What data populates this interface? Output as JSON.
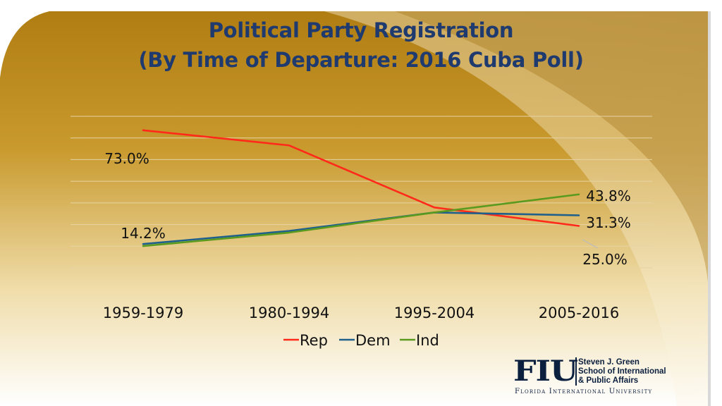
{
  "slide": {
    "title_line_1": "Political Party Registration",
    "title_line_2": "(By Time of Departure: 2016 Cuba Poll)"
  },
  "logo": {
    "mark": "FIU",
    "line_1": "Steven J. Green",
    "line_2": "School of International",
    "line_3": "& Public Affairs",
    "university": "Florida International University"
  },
  "colors": {
    "title": "#1f3a6e",
    "gold_background": "#b8860b",
    "Rep": "#ff2a1a",
    "Dem": "#1f5f8b",
    "Ind": "#5a9a1f"
  },
  "chart_data": {
    "type": "line",
    "title": "Political Party Registration (By Time of Departure: 2016 Cuba Poll)",
    "categories": [
      "1959-1979",
      "1980-1994",
      "1995-2004",
      "2005-2016"
    ],
    "series": [
      {
        "name": "Rep",
        "values": [
          82.0,
          73.0,
          36.0,
          25.0
        ]
      },
      {
        "name": "Dem",
        "values": [
          14.2,
          22.0,
          33.0,
          31.3
        ]
      },
      {
        "name": "Ind",
        "values": [
          13.0,
          21.0,
          33.0,
          43.8
        ]
      }
    ],
    "data_labels": [
      {
        "series": "Rep",
        "index": 1,
        "text": "73.0%"
      },
      {
        "series": "Rep",
        "index": 3,
        "text": "25.0%"
      },
      {
        "series": "Dem",
        "index": 0,
        "text": "14.2%"
      },
      {
        "series": "Dem",
        "index": 3,
        "text": "31.3%"
      },
      {
        "series": "Ind",
        "index": 3,
        "text": "43.8%"
      }
    ],
    "ylim": [
      0,
      100
    ],
    "grid": true,
    "legend_position": "bottom",
    "xlabel": "",
    "ylabel": ""
  }
}
